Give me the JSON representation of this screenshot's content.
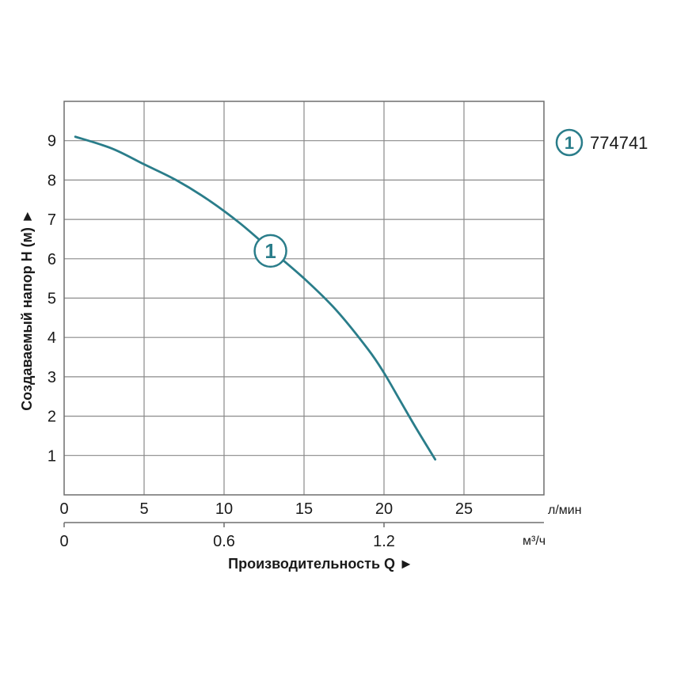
{
  "chart_data": {
    "type": "line",
    "title": "",
    "xlabel": "Производительность Q ►",
    "ylabel": "Создаваемый напор H (м) ►",
    "x_unit_primary": "л/мин",
    "x_unit_secondary": "м³/ч",
    "xlim": [
      0,
      30
    ],
    "ylim": [
      0,
      10
    ],
    "grid": true,
    "x_ticks": [
      0,
      5,
      10,
      15,
      20,
      25
    ],
    "x_tick_labels": [
      "0",
      "5",
      "10",
      "15",
      "20",
      "25"
    ],
    "x2_ticks": [
      0,
      10,
      20
    ],
    "x2_tick_labels": [
      "0",
      "0.6",
      "1.2"
    ],
    "y_ticks": [
      1,
      2,
      3,
      4,
      5,
      6,
      7,
      8,
      9
    ],
    "y_tick_labels": [
      "1",
      "2",
      "3",
      "4",
      "5",
      "6",
      "7",
      "8",
      "9"
    ],
    "legend_position": "top-right",
    "series": [
      {
        "name": "774741",
        "marker_label": "1",
        "color": "#2a7d8a",
        "x": [
          0.7,
          3,
          5,
          7,
          9,
          11,
          13,
          15,
          17,
          19,
          20,
          21,
          22,
          23.2
        ],
        "y": [
          9.1,
          8.8,
          8.4,
          8.0,
          7.5,
          6.9,
          6.2,
          5.5,
          4.7,
          3.7,
          3.1,
          2.4,
          1.7,
          0.9
        ]
      }
    ],
    "curve_marker_x": 13
  }
}
